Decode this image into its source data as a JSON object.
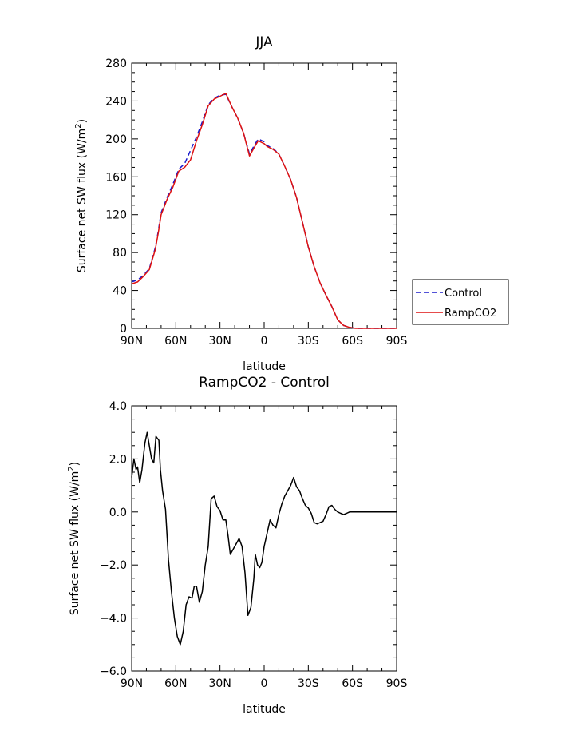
{
  "chart_data": [
    {
      "type": "line",
      "title": "JJA",
      "xlabel": "latitude",
      "ylabel": "Surface net SW flux (W/m²)",
      "ylabel_main": "Surface net SW flux (W/m",
      "ylabel_sup": "2",
      "ylabel_tail": ")",
      "xlim": [
        90,
        -90
      ],
      "ylim": [
        0,
        280
      ],
      "xticks": [
        90,
        60,
        30,
        0,
        -30,
        -60,
        -90
      ],
      "xtick_labels": [
        "90N",
        "60N",
        "30N",
        "0",
        "30S",
        "60S",
        "90S"
      ],
      "yticks": [
        0,
        40,
        80,
        120,
        160,
        200,
        240,
        280
      ],
      "ytick_labels": [
        "0",
        "40",
        "80",
        "120",
        "160",
        "200",
        "240",
        "280"
      ],
      "legend": "right",
      "series": [
        {
          "name": "Control",
          "color": "#1a1acc",
          "dash": "dashed",
          "x": [
            90,
            86,
            82,
            78,
            74,
            72,
            70,
            66,
            62,
            58,
            54,
            50,
            46,
            42,
            38,
            34,
            30,
            26,
            22,
            18,
            14,
            10,
            6,
            4,
            0,
            -2,
            -6,
            -10,
            -14,
            -18,
            -22,
            -26,
            -30,
            -34,
            -38,
            -42,
            -46,
            -50,
            -54,
            -58,
            -62,
            -66,
            -70,
            -74,
            -78,
            -82,
            -86,
            -90
          ],
          "y": [
            49,
            51,
            56,
            63,
            85,
            102,
            122,
            138,
            152,
            168,
            174,
            188,
            202,
            218,
            236,
            243,
            246,
            247,
            234,
            222,
            206,
            184,
            195,
            200,
            197,
            193,
            190,
            184,
            171,
            157,
            138,
            112,
            86,
            65,
            48,
            35,
            23,
            9,
            3,
            1,
            0,
            0,
            0,
            0,
            0,
            0,
            0,
            0
          ]
        },
        {
          "name": "RampCO2",
          "color": "#dd1111",
          "dash": "solid",
          "x": [
            90,
            86,
            82,
            78,
            74,
            72,
            70,
            66,
            62,
            58,
            54,
            50,
            46,
            42,
            38,
            34,
            30,
            26,
            22,
            18,
            14,
            10,
            6,
            4,
            0,
            -2,
            -6,
            -10,
            -14,
            -18,
            -22,
            -26,
            -30,
            -34,
            -38,
            -42,
            -46,
            -50,
            -54,
            -58,
            -62,
            -66,
            -70,
            -74,
            -78,
            -82,
            -86,
            -90
          ],
          "y": [
            47,
            49,
            55,
            62,
            83,
            100,
            120,
            136,
            149,
            166,
            170,
            178,
            198,
            215,
            235,
            242,
            245,
            248,
            234,
            222,
            206,
            182,
            193,
            198,
            195,
            192,
            189,
            184,
            171,
            157,
            138,
            112,
            86,
            65,
            48,
            35,
            23,
            9,
            3,
            1,
            0,
            0,
            0,
            0,
            0,
            0,
            0,
            0
          ]
        }
      ]
    },
    {
      "type": "line",
      "title": "RampCO2 - Control",
      "xlabel": "latitude",
      "ylabel": "Surface net SW flux (W/m²)",
      "ylabel_main": "Surface net SW flux (W/m",
      "ylabel_sup": "2",
      "ylabel_tail": ")",
      "xlim": [
        90,
        -90
      ],
      "ylim": [
        -6,
        4
      ],
      "xticks": [
        90,
        60,
        30,
        0,
        -30,
        -60,
        -90
      ],
      "xtick_labels": [
        "90N",
        "60N",
        "30N",
        "0",
        "30S",
        "60S",
        "90S"
      ],
      "yticks": [
        -6,
        -4,
        -2,
        0,
        2,
        4
      ],
      "ytick_labels": [
        "−6.0",
        "−4.0",
        "−2.0",
        "0.0",
        "2.0",
        "4.0"
      ],
      "series": [
        {
          "color": "#000000",
          "dash": "solid",
          "x": [
            90,
            88.5,
            87,
            86,
            84.5,
            83,
            81,
            79.5,
            78,
            76.5,
            75,
            73.5,
            71.5,
            70.5,
            69,
            67,
            65,
            63,
            61,
            59,
            57,
            55,
            53,
            51,
            49,
            47.5,
            46,
            44,
            42,
            40,
            38,
            36,
            34,
            32,
            30,
            28,
            26,
            24.5,
            23,
            21,
            19,
            17,
            15,
            13,
            11,
            9,
            7,
            6,
            4.5,
            3,
            1.5,
            0,
            -2,
            -4,
            -6,
            -8,
            -10,
            -12,
            -14,
            -16,
            -18,
            -20,
            -22,
            -24,
            -26,
            -28,
            -30,
            -32,
            -34,
            -36,
            -38,
            -40,
            -42,
            -44,
            -46,
            -48,
            -50,
            -52,
            -54,
            -56,
            -58,
            -60,
            -62,
            -64,
            -66,
            -68,
            -70,
            -72,
            -74,
            -76,
            -78,
            -80,
            -82,
            -84,
            -86,
            -88,
            -90
          ],
          "y": [
            1.3,
            2.0,
            1.6,
            1.7,
            1.1,
            1.6,
            2.6,
            3.0,
            2.5,
            2.0,
            1.85,
            2.85,
            2.7,
            1.6,
            0.8,
            0.1,
            -1.8,
            -3.0,
            -4.0,
            -4.7,
            -5.0,
            -4.5,
            -3.5,
            -3.2,
            -3.25,
            -2.8,
            -2.8,
            -3.4,
            -3.0,
            -2.0,
            -1.3,
            0.5,
            0.6,
            0.2,
            0.05,
            -0.3,
            -0.3,
            -0.9,
            -1.6,
            -1.4,
            -1.2,
            -1.0,
            -1.3,
            -2.3,
            -3.9,
            -3.6,
            -2.5,
            -1.6,
            -2.0,
            -2.1,
            -1.9,
            -1.3,
            -0.8,
            -0.3,
            -0.5,
            -0.6,
            -0.1,
            0.3,
            0.6,
            0.8,
            1.0,
            1.3,
            0.95,
            0.8,
            0.5,
            0.25,
            0.15,
            -0.05,
            -0.4,
            -0.45,
            -0.4,
            -0.35,
            -0.1,
            0.2,
            0.25,
            0.1,
            0.0,
            -0.05,
            -0.1,
            -0.05,
            0.0,
            0.0,
            0.0,
            0.0,
            0.0,
            0.0,
            0.0,
            0.0,
            0.0,
            0.0,
            0.0,
            0.0,
            0.0,
            0.0,
            0.0,
            0.0,
            0.0
          ]
        }
      ]
    }
  ]
}
